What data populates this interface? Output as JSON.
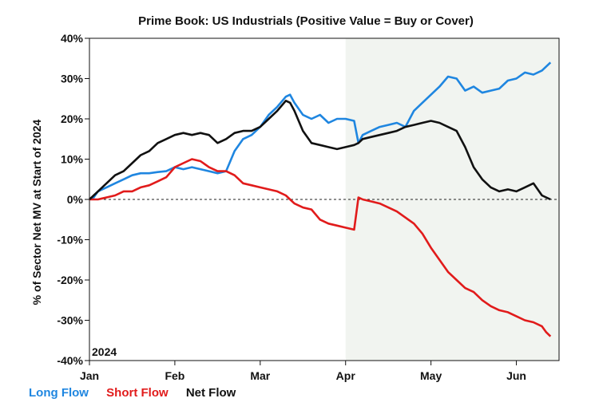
{
  "chart_data": {
    "type": "line",
    "title": "Prime Book: US Industrials (Positive Value = Buy or Cover)",
    "ylabel": "% of Sector Net MV at Start of 2024",
    "xlabel": "",
    "year_label": "2024",
    "ylim": [
      -40,
      40
    ],
    "yticks": [
      40,
      30,
      20,
      10,
      0,
      -10,
      -20,
      -30,
      -40
    ],
    "ytick_labels": [
      "40%",
      "30%",
      "20%",
      "10%",
      "0%",
      "-10%",
      "-20%",
      "-30%",
      "-40%"
    ],
    "xlim": [
      0,
      5.5
    ],
    "xticks": [
      0,
      1,
      2,
      3,
      4,
      5
    ],
    "xtick_labels": [
      "Jan",
      "Feb",
      "Mar",
      "Apr",
      "May",
      "Jun"
    ],
    "shaded_region": [
      3.0,
      5.5
    ],
    "zero_line": true,
    "series": [
      {
        "name": "Long Flow",
        "color": "#1f86e0",
        "x": [
          0,
          0.05,
          0.1,
          0.2,
          0.3,
          0.4,
          0.5,
          0.6,
          0.7,
          0.8,
          0.9,
          1.0,
          1.1,
          1.2,
          1.3,
          1.4,
          1.5,
          1.6,
          1.7,
          1.8,
          1.9,
          2.0,
          2.1,
          2.2,
          2.3,
          2.35,
          2.4,
          2.5,
          2.6,
          2.7,
          2.8,
          2.9,
          3.0,
          3.1,
          3.15,
          3.2,
          3.3,
          3.4,
          3.5,
          3.6,
          3.7,
          3.8,
          3.9,
          4.0,
          4.1,
          4.2,
          4.3,
          4.4,
          4.5,
          4.6,
          4.7,
          4.8,
          4.9,
          5.0,
          5.1,
          5.2,
          5.3,
          5.4
        ],
        "values": [
          0,
          0.5,
          2,
          3,
          4,
          5,
          6,
          6.5,
          6.5,
          6.8,
          7,
          8,
          7.5,
          8,
          7.5,
          7,
          6.5,
          7,
          12,
          15,
          16,
          18,
          21,
          23,
          25.5,
          26,
          24,
          21,
          20,
          21,
          19,
          20,
          20,
          19.5,
          14,
          16,
          17,
          18,
          18.5,
          19,
          18,
          22,
          24,
          26,
          28,
          30.5,
          30,
          27,
          28,
          26.5,
          27,
          27.5,
          29.5,
          30,
          31.5,
          31,
          32,
          34
        ]
      },
      {
        "name": "Short Flow",
        "color": "#e11b1b",
        "x": [
          0,
          0.1,
          0.2,
          0.3,
          0.4,
          0.5,
          0.6,
          0.7,
          0.8,
          0.9,
          1.0,
          1.1,
          1.2,
          1.3,
          1.4,
          1.5,
          1.6,
          1.7,
          1.8,
          1.9,
          2.0,
          2.1,
          2.2,
          2.3,
          2.4,
          2.5,
          2.6,
          2.7,
          2.8,
          2.9,
          3.0,
          3.1,
          3.15,
          3.2,
          3.3,
          3.4,
          3.5,
          3.6,
          3.7,
          3.8,
          3.9,
          4.0,
          4.1,
          4.2,
          4.3,
          4.4,
          4.5,
          4.6,
          4.7,
          4.8,
          4.9,
          5.0,
          5.1,
          5.2,
          5.3,
          5.35,
          5.4
        ],
        "values": [
          0,
          0,
          0.5,
          1,
          2,
          2,
          3,
          3.5,
          4.5,
          5.5,
          8,
          9,
          10,
          9.5,
          8,
          7,
          7,
          6,
          4,
          3.5,
          3,
          2.5,
          2,
          1,
          -1,
          -2,
          -2.5,
          -5,
          -6,
          -6.5,
          -7,
          -7.5,
          0.5,
          0,
          -0.5,
          -1,
          -2,
          -3,
          -4.5,
          -6,
          -8.5,
          -12,
          -15,
          -18,
          -20,
          -22,
          -23,
          -25,
          -26.5,
          -27.5,
          -28,
          -29,
          -30,
          -30.5,
          -31.5,
          -33,
          -34
        ]
      },
      {
        "name": "Net Flow",
        "color": "#111111",
        "x": [
          0,
          0.05,
          0.1,
          0.2,
          0.3,
          0.4,
          0.5,
          0.6,
          0.7,
          0.8,
          0.9,
          1.0,
          1.1,
          1.2,
          1.3,
          1.4,
          1.5,
          1.6,
          1.7,
          1.8,
          1.9,
          2.0,
          2.1,
          2.2,
          2.3,
          2.35,
          2.4,
          2.5,
          2.6,
          2.7,
          2.8,
          2.9,
          3.0,
          3.1,
          3.15,
          3.2,
          3.3,
          3.4,
          3.5,
          3.6,
          3.7,
          3.8,
          3.9,
          4.0,
          4.1,
          4.2,
          4.3,
          4.4,
          4.5,
          4.6,
          4.7,
          4.8,
          4.9,
          5.0,
          5.1,
          5.2,
          5.3,
          5.4
        ],
        "values": [
          0,
          1,
          2,
          4,
          6,
          7,
          9,
          11,
          12,
          14,
          15,
          16,
          16.5,
          16,
          16.5,
          16,
          14,
          15,
          16.5,
          17,
          17,
          18,
          20,
          22,
          24.5,
          24,
          22,
          17,
          14,
          13.5,
          13,
          12.5,
          13,
          13.5,
          14,
          15,
          15.5,
          16,
          16.5,
          17,
          18,
          18.5,
          19,
          19.5,
          19,
          18,
          17,
          13,
          8,
          5,
          3,
          2,
          2.5,
          2,
          3,
          4,
          1,
          0
        ]
      }
    ],
    "legend": [
      "Long Flow",
      "Short Flow",
      "Net Flow"
    ],
    "legend_position": "bottom-left"
  }
}
